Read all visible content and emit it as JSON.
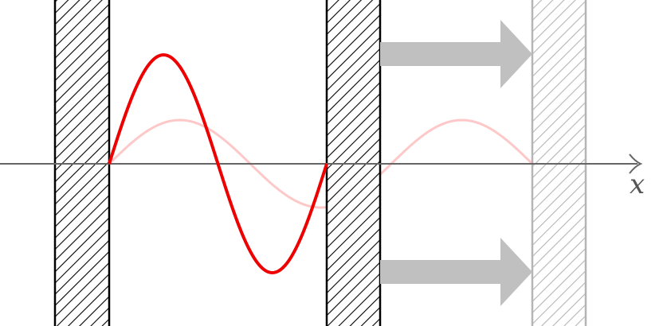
{
  "axis": {
    "label": "x"
  },
  "colors": {
    "wave_primary": "#ee0000",
    "wave_faded": "#ffc8c8",
    "wall": "#000000",
    "wall_faded": "#b5b5b5",
    "arrow": "#c0c0c0",
    "axis": "#666666"
  },
  "icons": [
    "arrow-right-icon",
    "arrow-right-icon"
  ]
}
